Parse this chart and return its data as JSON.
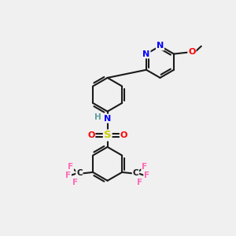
{
  "bg_color": "#f0f0f0",
  "bond_color": "#1a1a1a",
  "bond_width": 1.5,
  "atom_colors": {
    "N": "#0000ff",
    "O": "#ff0000",
    "S": "#cccc00",
    "F": "#ff69b4",
    "H": "#5f9ea0",
    "C": "#1a1a1a"
  },
  "font_size": 8.0,
  "fig_size": [
    3.0,
    3.0
  ],
  "dpi": 100
}
